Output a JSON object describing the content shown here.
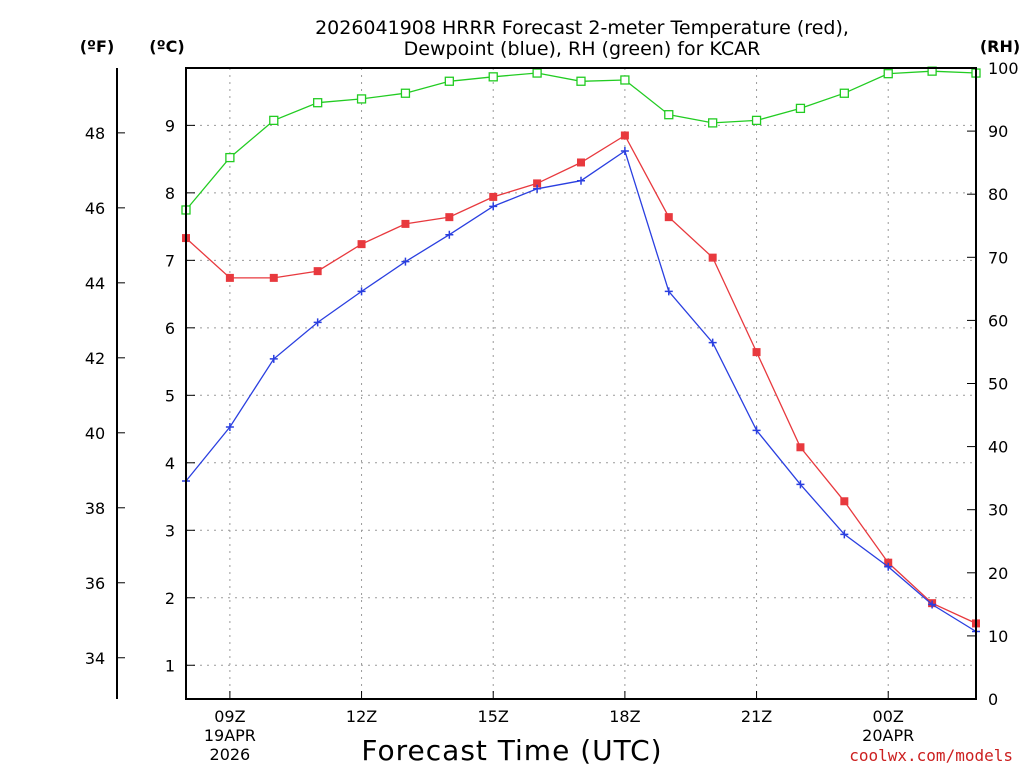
{
  "colors": {
    "temperature": "#e8393e",
    "dewpoint": "#2a3fe0",
    "rh": "#22cc22",
    "credit": "#cc2020"
  },
  "chart_data": {
    "type": "line",
    "title_line1": "2026041908 HRRR Forecast 2-meter Temperature (red),",
    "title_line2": "Dewpoint (blue), RH (green) for KCAR",
    "xlabel": "Forecast Time (UTC)",
    "credit": "coolwx.com/models",
    "x_hours": [
      8,
      9,
      10,
      11,
      12,
      13,
      14,
      15,
      16,
      17,
      18,
      19,
      20,
      21,
      22,
      23,
      24,
      25,
      26
    ],
    "x_range": [
      8,
      26
    ],
    "x_ticks": [
      {
        "hour": 9,
        "label": "09Z",
        "sub1": "19APR",
        "sub2": "2026"
      },
      {
        "hour": 12,
        "label": "12Z",
        "sub1": "",
        "sub2": ""
      },
      {
        "hour": 15,
        "label": "15Z",
        "sub1": "",
        "sub2": ""
      },
      {
        "hour": 18,
        "label": "18Z",
        "sub1": "",
        "sub2": ""
      },
      {
        "hour": 21,
        "label": "21Z",
        "sub1": "",
        "sub2": ""
      },
      {
        "hour": 24,
        "label": "00Z",
        "sub1": "20APR",
        "sub2": ""
      }
    ],
    "axes": {
      "celsius": {
        "label": "(ºC)",
        "range": [
          0.5,
          9.85
        ],
        "ticks": [
          1,
          2,
          3,
          4,
          5,
          6,
          7,
          8,
          9
        ]
      },
      "fahrenheit": {
        "label": "(ºF)",
        "ticks": [
          34,
          36,
          38,
          40,
          42,
          44,
          46,
          48
        ]
      },
      "rh": {
        "label": "(RH)",
        "range": [
          0,
          100
        ],
        "ticks": [
          0,
          10,
          20,
          30,
          40,
          50,
          60,
          70,
          80,
          90,
          100
        ]
      }
    },
    "series": [
      {
        "name": "Temperature",
        "unit": "C",
        "marker": "filled-square",
        "values": [
          7.33,
          6.74,
          6.74,
          6.84,
          7.24,
          7.54,
          7.64,
          7.94,
          8.14,
          8.45,
          8.85,
          7.64,
          7.04,
          5.64,
          4.23,
          3.43,
          2.52,
          1.92,
          1.62
        ]
      },
      {
        "name": "Dewpoint",
        "unit": "C",
        "marker": "plus",
        "values": [
          3.73,
          4.53,
          5.54,
          6.08,
          6.54,
          6.98,
          7.38,
          7.8,
          8.06,
          8.18,
          8.62,
          6.54,
          5.78,
          4.48,
          3.68,
          2.94,
          2.46,
          1.9,
          1.5
        ]
      },
      {
        "name": "RH",
        "unit": "%",
        "marker": "open-square",
        "values": [
          77.5,
          85.8,
          91.7,
          94.5,
          95.1,
          96.0,
          97.9,
          98.6,
          99.2,
          97.9,
          98.1,
          92.6,
          91.3,
          91.7,
          93.6,
          96.0,
          99.1,
          99.5,
          99.2
        ]
      }
    ]
  }
}
